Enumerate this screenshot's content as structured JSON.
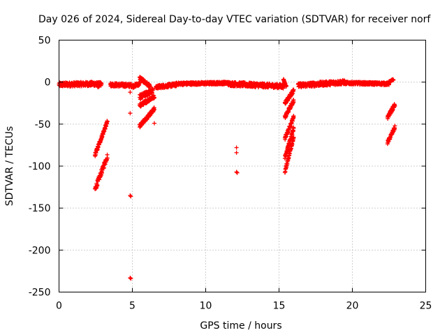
{
  "chart_data": {
    "type": "scatter",
    "title": "Day 026 of 2024, Sidereal Day-to-day VTEC variation (SDTVAR) for receiver norf",
    "xlabel": "GPS time / hours",
    "ylabel": "SDTVAR / TECUs",
    "xlim": [
      0,
      25
    ],
    "ylim": [
      -250,
      50
    ],
    "xticks": [
      0,
      5,
      10,
      15,
      20,
      25
    ],
    "yticks": [
      50,
      0,
      -50,
      -100,
      -150,
      -200,
      -250
    ],
    "xtick_labels": [
      "0",
      "5",
      "10",
      "15",
      "20",
      "25"
    ],
    "ytick_labels": [
      "50",
      "0",
      "-50",
      "-100",
      "-150",
      "-200",
      "-250"
    ],
    "grid": true,
    "marker": "+",
    "color": "#ff0000",
    "series": [
      {
        "name": "SDTVAR",
        "segments": [
          {
            "x": [
              0.0,
              2.5
            ],
            "y": [
              -3,
              -2
            ],
            "noise": 2.5
          },
          {
            "x": [
              2.5,
              2.9
            ],
            "y": [
              -3,
              -3
            ],
            "noise": 3
          },
          {
            "x": [
              2.45,
              3.3
            ],
            "y": [
              -87,
              -47
            ],
            "noise": 2
          },
          {
            "x": [
              2.45,
              3.3
            ],
            "y": [
              -128,
              -88
            ],
            "noise": 3
          },
          {
            "x": [
              3.5,
              5.0
            ],
            "y": [
              -3,
              -4
            ],
            "noise": 2
          },
          {
            "x": [
              5.0,
              5.5
            ],
            "y": [
              -5,
              -2
            ],
            "noise": 2
          },
          {
            "x": [
              5.5,
              6.2
            ],
            "y": [
              5,
              -5
            ],
            "noise": 2
          },
          {
            "x": [
              5.5,
              6.4
            ],
            "y": [
              -18,
              -10
            ],
            "noise": 3
          },
          {
            "x": [
              5.5,
              6.5
            ],
            "y": [
              -28,
              -17
            ],
            "noise": 2
          },
          {
            "x": [
              5.5,
              6.5
            ],
            "y": [
              -52,
              -32
            ],
            "noise": 2
          },
          {
            "x": [
              6.6,
              8.0
            ],
            "y": [
              -6,
              -3
            ],
            "noise": 2
          },
          {
            "x": [
              8.0,
              11.5
            ],
            "y": [
              -2,
              -1
            ],
            "noise": 1.5
          },
          {
            "x": [
              11.5,
              15.3
            ],
            "y": [
              -2,
              -5
            ],
            "noise": 2.5
          },
          {
            "x": [
              15.3,
              15.5
            ],
            "y": [
              3,
              -5
            ],
            "noise": 1
          },
          {
            "x": [
              15.4,
              16.0
            ],
            "y": [
              -25,
              -10
            ],
            "noise": 2
          },
          {
            "x": [
              15.4,
              16.0
            ],
            "y": [
              -42,
              -22
            ],
            "noise": 2
          },
          {
            "x": [
              15.4,
              16.0
            ],
            "y": [
              -67,
              -42
            ],
            "noise": 2
          },
          {
            "x": [
              15.4,
              16.0
            ],
            "y": [
              -90,
              -55
            ],
            "noise": 2
          },
          {
            "x": [
              15.4,
              16.0
            ],
            "y": [
              -107,
              -65
            ],
            "noise": 2
          },
          {
            "x": [
              16.3,
              19.5
            ],
            "y": [
              -4,
              0
            ],
            "noise": 2.5
          },
          {
            "x": [
              19.5,
              22.5
            ],
            "y": [
              -1,
              -2
            ],
            "noise": 1.5
          },
          {
            "x": [
              22.5,
              22.8
            ],
            "y": [
              0,
              3
            ],
            "noise": 1
          },
          {
            "x": [
              22.4,
              22.9
            ],
            "y": [
              -42,
              -27
            ],
            "noise": 2
          },
          {
            "x": [
              22.4,
              22.9
            ],
            "y": [
              -72,
              -54
            ],
            "noise": 2
          }
        ],
        "points": [
          {
            "x": 4.85,
            "y": -12
          },
          {
            "x": 4.85,
            "y": -37
          },
          {
            "x": 4.85,
            "y": -135
          },
          {
            "x": 4.9,
            "y": -136
          },
          {
            "x": 4.85,
            "y": -233
          },
          {
            "x": 4.9,
            "y": -234
          },
          {
            "x": 6.5,
            "y": -49
          },
          {
            "x": 12.1,
            "y": -78
          },
          {
            "x": 12.1,
            "y": -84
          },
          {
            "x": 12.1,
            "y": -107
          },
          {
            "x": 12.15,
            "y": -108
          }
        ]
      }
    ]
  }
}
